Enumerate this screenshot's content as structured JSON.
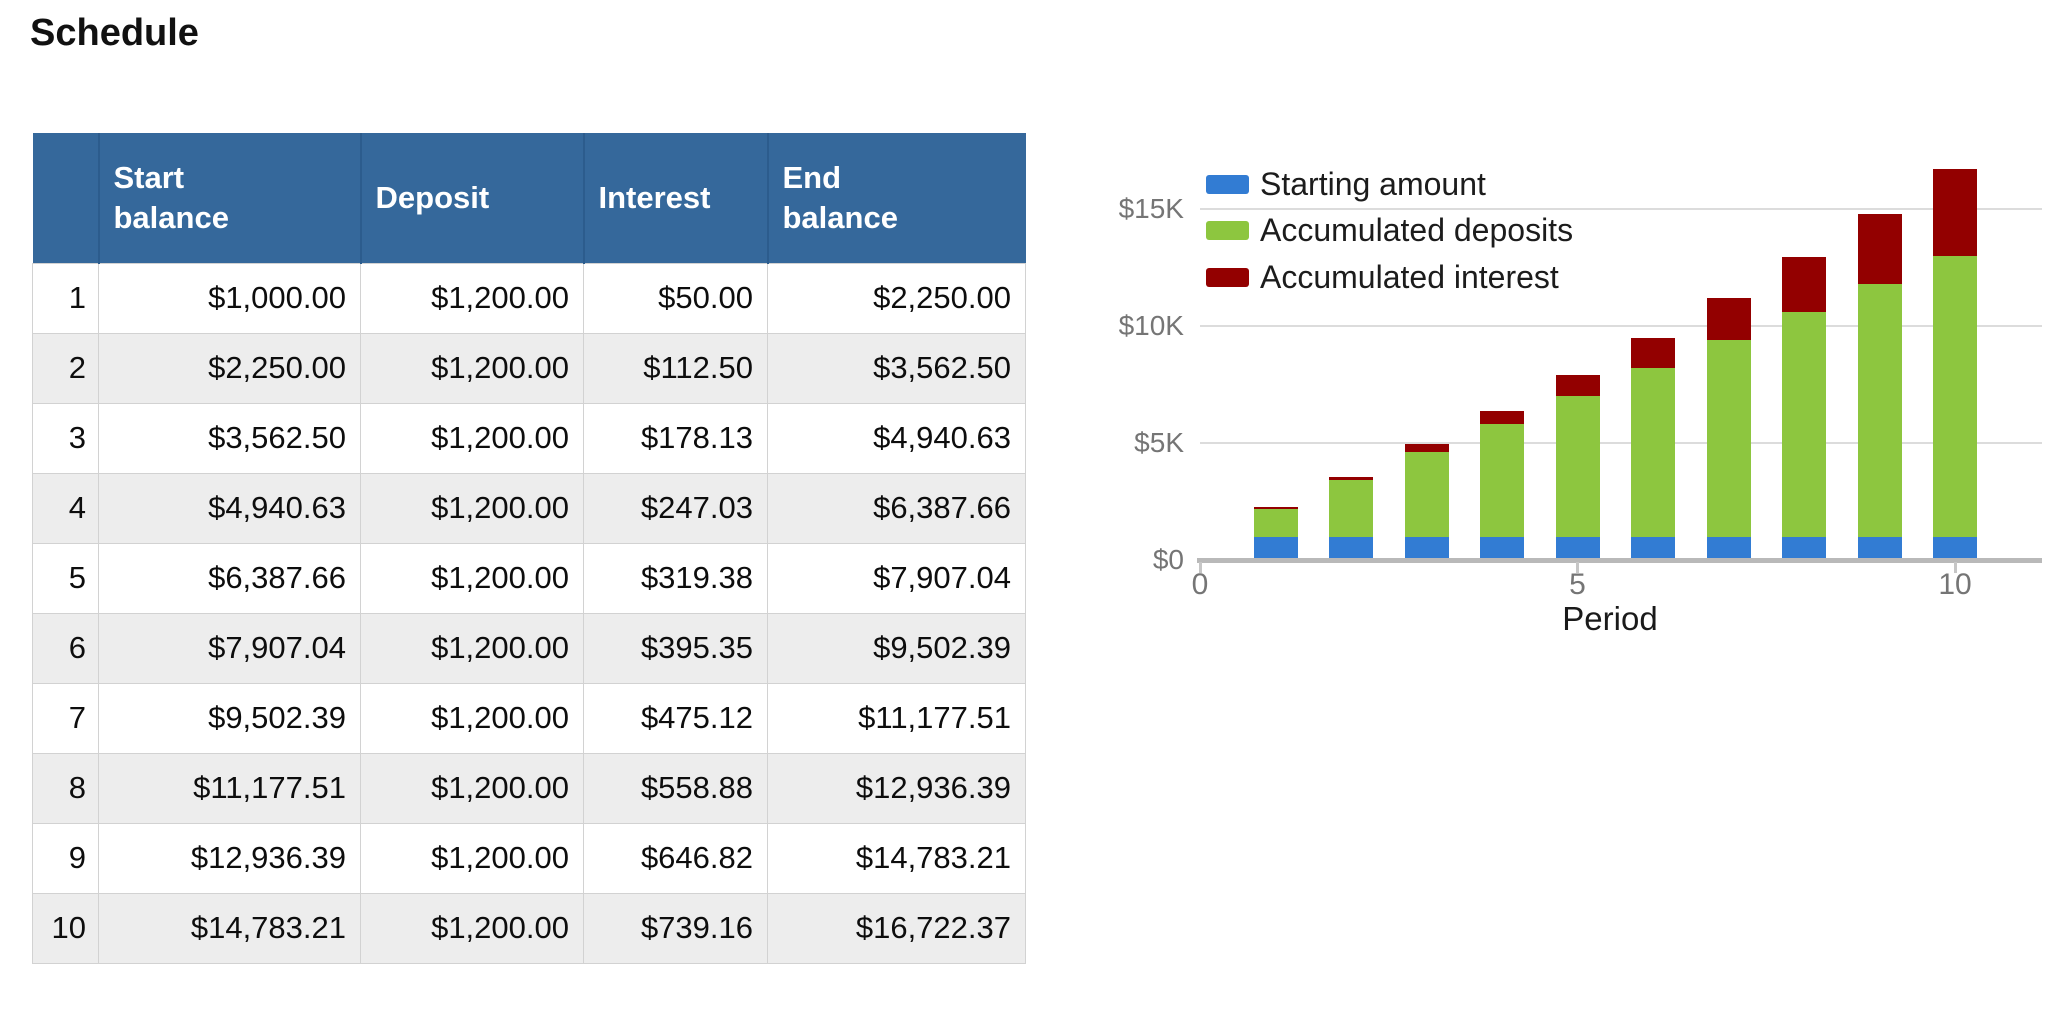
{
  "page": {
    "title": "Schedule"
  },
  "table": {
    "headers": [
      "",
      "Start\nbalance",
      "Deposit",
      "Interest",
      "End\nbalance"
    ],
    "rows": [
      [
        "1",
        "$1,000.00",
        "$1,200.00",
        "$50.00",
        "$2,250.00"
      ],
      [
        "2",
        "$2,250.00",
        "$1,200.00",
        "$112.50",
        "$3,562.50"
      ],
      [
        "3",
        "$3,562.50",
        "$1,200.00",
        "$178.13",
        "$4,940.63"
      ],
      [
        "4",
        "$4,940.63",
        "$1,200.00",
        "$247.03",
        "$6,387.66"
      ],
      [
        "5",
        "$6,387.66",
        "$1,200.00",
        "$319.38",
        "$7,907.04"
      ],
      [
        "6",
        "$7,907.04",
        "$1,200.00",
        "$395.35",
        "$9,502.39"
      ],
      [
        "7",
        "$9,502.39",
        "$1,200.00",
        "$475.12",
        "$11,177.51"
      ],
      [
        "8",
        "$11,177.51",
        "$1,200.00",
        "$558.88",
        "$12,936.39"
      ],
      [
        "9",
        "$12,936.39",
        "$1,200.00",
        "$646.82",
        "$14,783.21"
      ],
      [
        "10",
        "$14,783.21",
        "$1,200.00",
        "$739.16",
        "$16,722.37"
      ]
    ]
  },
  "chart_data": {
    "type": "bar",
    "stacked": true,
    "title": "",
    "xlabel": "Period",
    "ylabel": "",
    "categories": [
      1,
      2,
      3,
      4,
      5,
      6,
      7,
      8,
      9,
      10
    ],
    "series": [
      {
        "name": "Starting amount",
        "color": "#327CD3",
        "values": [
          1000,
          1000,
          1000,
          1000,
          1000,
          1000,
          1000,
          1000,
          1000,
          1000
        ]
      },
      {
        "name": "Accumulated deposits",
        "color": "#8DC63F",
        "values": [
          1200,
          2400,
          3600,
          4800,
          6000,
          7200,
          8400,
          9600,
          10800,
          12000
        ]
      },
      {
        "name": "Accumulated interest",
        "color": "#930000",
        "values": [
          50,
          162.5,
          340.63,
          587.66,
          907.04,
          1302.39,
          1777.51,
          2336.39,
          2983.21,
          3722.37
        ]
      }
    ],
    "y_ticks": [
      {
        "value": 0,
        "label": "$0"
      },
      {
        "value": 5000,
        "label": "$5K"
      },
      {
        "value": 10000,
        "label": "$10K"
      },
      {
        "value": 15000,
        "label": "$15K"
      }
    ],
    "x_ticks": [
      {
        "value": 0,
        "label": "0"
      },
      {
        "value": 5,
        "label": "5"
      },
      {
        "value": 10,
        "label": "10"
      }
    ],
    "xlim": [
      0,
      11.2
    ],
    "ylim": [
      0,
      17100
    ],
    "grid": true,
    "legend_position": "top-left"
  },
  "colors": {
    "header_bg": "#35689B",
    "header_text": "#FFFFFF",
    "row_stripe": "#EDEDED",
    "table_border": "#D2D2D2",
    "grid_line": "#DCDCDC",
    "axis_line": "#B9B9B9",
    "axis_text": "#757575",
    "text": "#1A1A1A"
  }
}
